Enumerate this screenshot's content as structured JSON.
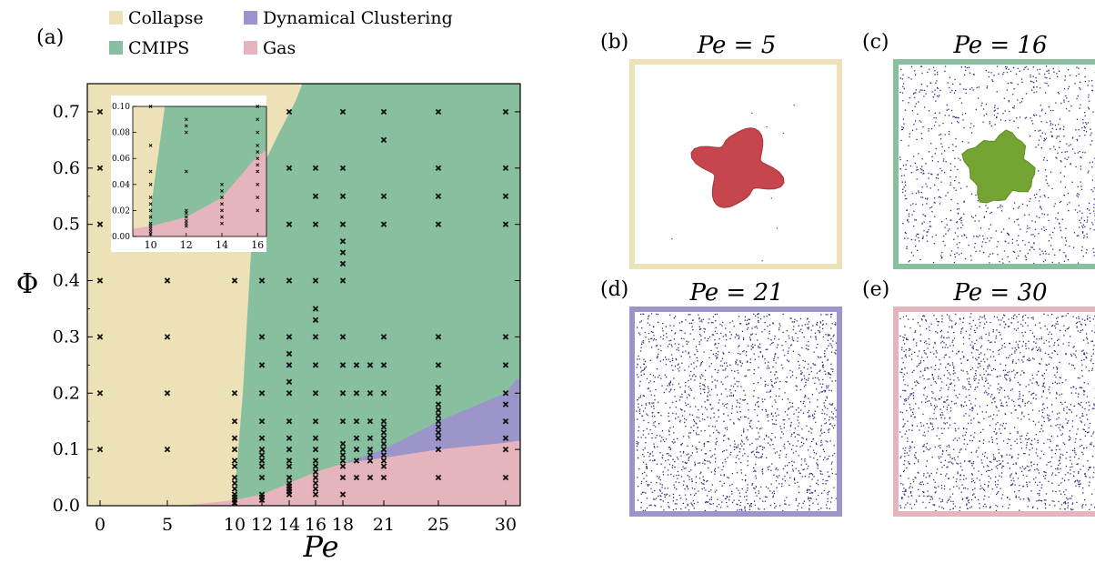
{
  "colors": {
    "collapse": "#ede1b8",
    "cmips": "#88bf9e",
    "clustering": "#9b95c9",
    "gas": "#e6b4bd",
    "marker": "#111111",
    "particle_blue": "#2c2d7a",
    "cluster_red": "#c5474d",
    "cluster_green": "#74a532"
  },
  "chart_data": [
    {
      "type": "scatter",
      "panel_label": "(a)",
      "xlabel": "Pe",
      "ylabel": "Φ",
      "x_ticks": [
        "0",
        "5",
        "10",
        "12",
        "14",
        "16",
        "18",
        "21",
        "25",
        "30"
      ],
      "y_ticks": [
        "0.0",
        "0.1",
        "0.2",
        "0.3",
        "0.4",
        "0.5",
        "0.6",
        "0.7"
      ],
      "ylim": [
        0,
        0.75
      ],
      "legend_position": "top",
      "legend": [
        {
          "label": "Collapse",
          "color": "#ede1b8"
        },
        {
          "label": "Dynamical Clustering",
          "color": "#9b95c9"
        },
        {
          "label": "CMIPS",
          "color": "#88bf9e"
        },
        {
          "label": "Gas",
          "color": "#e6b4bd"
        }
      ],
      "regions": {
        "cmips_lower_boundary": [
          [
            9.8,
            0.0
          ],
          [
            10,
            0.02
          ],
          [
            10.6,
            0.2
          ],
          [
            11.2,
            0.45
          ],
          [
            12,
            0.6
          ],
          [
            13.2,
            0.66
          ],
          [
            14.5,
            0.72
          ],
          [
            15,
            0.75
          ]
        ],
        "gas_upper_boundary": [
          [
            6,
            0.0
          ],
          [
            10,
            0.01
          ],
          [
            12,
            0.02
          ],
          [
            14,
            0.04
          ],
          [
            16,
            0.06
          ],
          [
            18,
            0.075
          ],
          [
            21,
            0.085
          ],
          [
            25,
            0.1
          ],
          [
            30,
            0.112
          ],
          [
            30.8,
            0.115
          ]
        ],
        "clustering_upper_boundary": [
          [
            18,
            0.075
          ],
          [
            21,
            0.1
          ],
          [
            25,
            0.15
          ],
          [
            30,
            0.2
          ],
          [
            30.8,
            0.225
          ]
        ]
      },
      "points": [
        {
          "pe": 0,
          "phi": [
            0.1,
            0.2,
            0.3,
            0.4,
            0.5,
            0.6,
            0.7
          ]
        },
        {
          "pe": 5,
          "phi": [
            0.1,
            0.2,
            0.3,
            0.4
          ]
        },
        {
          "pe": 10,
          "phi": [
            0.005,
            0.01,
            0.015,
            0.02,
            0.03,
            0.04,
            0.05,
            0.07,
            0.08,
            0.1,
            0.12,
            0.15,
            0.2,
            0.4
          ]
        },
        {
          "pe": 12,
          "phi": [
            0.01,
            0.015,
            0.02,
            0.05,
            0.07,
            0.08,
            0.09,
            0.1,
            0.12,
            0.15,
            0.2,
            0.25,
            0.3,
            0.4
          ]
        },
        {
          "pe": 14,
          "phi": [
            0.02,
            0.025,
            0.03,
            0.035,
            0.04,
            0.05,
            0.07,
            0.08,
            0.1,
            0.12,
            0.15,
            0.2,
            0.22,
            0.25,
            0.27,
            0.3,
            0.4,
            0.5,
            0.6,
            0.7
          ]
        },
        {
          "pe": 16,
          "phi": [
            0.02,
            0.03,
            0.04,
            0.05,
            0.06,
            0.07,
            0.08,
            0.1,
            0.12,
            0.15,
            0.2,
            0.25,
            0.3,
            0.33,
            0.35,
            0.4,
            0.5,
            0.55,
            0.6
          ]
        },
        {
          "pe": 18,
          "phi": [
            0.02,
            0.05,
            0.07,
            0.08,
            0.09,
            0.1,
            0.11,
            0.15,
            0.2,
            0.25,
            0.3,
            0.4,
            0.43,
            0.45,
            0.47,
            0.5,
            0.55,
            0.6,
            0.7
          ]
        },
        {
          "pe": 19,
          "phi": [
            0.05,
            0.08,
            0.1,
            0.12,
            0.15,
            0.2,
            0.25
          ]
        },
        {
          "pe": 20,
          "phi": [
            0.05,
            0.08,
            0.09,
            0.1,
            0.12,
            0.15,
            0.2,
            0.25
          ]
        },
        {
          "pe": 21,
          "phi": [
            0.05,
            0.07,
            0.08,
            0.09,
            0.1,
            0.11,
            0.12,
            0.13,
            0.14,
            0.15,
            0.2,
            0.25,
            0.3,
            0.5,
            0.55,
            0.65,
            0.7
          ]
        },
        {
          "pe": 25,
          "phi": [
            0.05,
            0.1,
            0.12,
            0.13,
            0.14,
            0.15,
            0.16,
            0.17,
            0.18,
            0.2,
            0.21,
            0.25,
            0.3,
            0.5,
            0.55,
            0.6,
            0.7
          ]
        },
        {
          "pe": 30,
          "phi": [
            0.05,
            0.1,
            0.12,
            0.15,
            0.18,
            0.2,
            0.25,
            0.3,
            0.5,
            0.55,
            0.6,
            0.7
          ]
        }
      ]
    },
    {
      "type": "scatter",
      "panel_label": "inset",
      "x_ticks": [
        "10",
        "12",
        "14",
        "16"
      ],
      "y_ticks": [
        "0.00",
        "0.02",
        "0.04",
        "0.06",
        "0.08",
        "0.10"
      ],
      "xlim": [
        9,
        16.5
      ],
      "ylim": [
        0,
        0.1
      ],
      "regions": {
        "cmips_lower_boundary": [
          [
            9.8,
            0.0
          ],
          [
            10,
            0.02
          ],
          [
            10.4,
            0.06
          ],
          [
            10.8,
            0.1
          ]
        ],
        "gas_upper_boundary": [
          [
            9,
            0.006
          ],
          [
            10,
            0.008
          ],
          [
            12,
            0.015
          ],
          [
            14,
            0.03
          ],
          [
            16,
            0.062
          ],
          [
            16.5,
            0.066
          ]
        ]
      },
      "points": [
        {
          "pe": 10,
          "phi": [
            0.002,
            0.004,
            0.006,
            0.008,
            0.01,
            0.015,
            0.02,
            0.025,
            0.03,
            0.04,
            0.05,
            0.07,
            0.1
          ]
        },
        {
          "pe": 12,
          "phi": [
            0.008,
            0.01,
            0.012,
            0.015,
            0.018,
            0.02,
            0.05,
            0.08,
            0.085,
            0.09
          ]
        },
        {
          "pe": 14,
          "phi": [
            0.01,
            0.015,
            0.02,
            0.025,
            0.03,
            0.035,
            0.04
          ]
        },
        {
          "pe": 16,
          "phi": [
            0.02,
            0.03,
            0.04,
            0.05,
            0.055,
            0.06,
            0.065,
            0.07,
            0.08,
            0.09,
            0.1
          ]
        }
      ]
    }
  ],
  "snapshots": [
    {
      "label": "(b)",
      "title": "Pe = 5",
      "frame": "collapse",
      "kind": "collapse"
    },
    {
      "label": "(c)",
      "title": "Pe = 16",
      "frame": "cmips",
      "kind": "cmips"
    },
    {
      "label": "(d)",
      "title": "Pe = 21",
      "frame": "clustering",
      "kind": "gas"
    },
    {
      "label": "(e)",
      "title": "Pe = 30",
      "frame": "gas",
      "kind": "gas"
    }
  ]
}
